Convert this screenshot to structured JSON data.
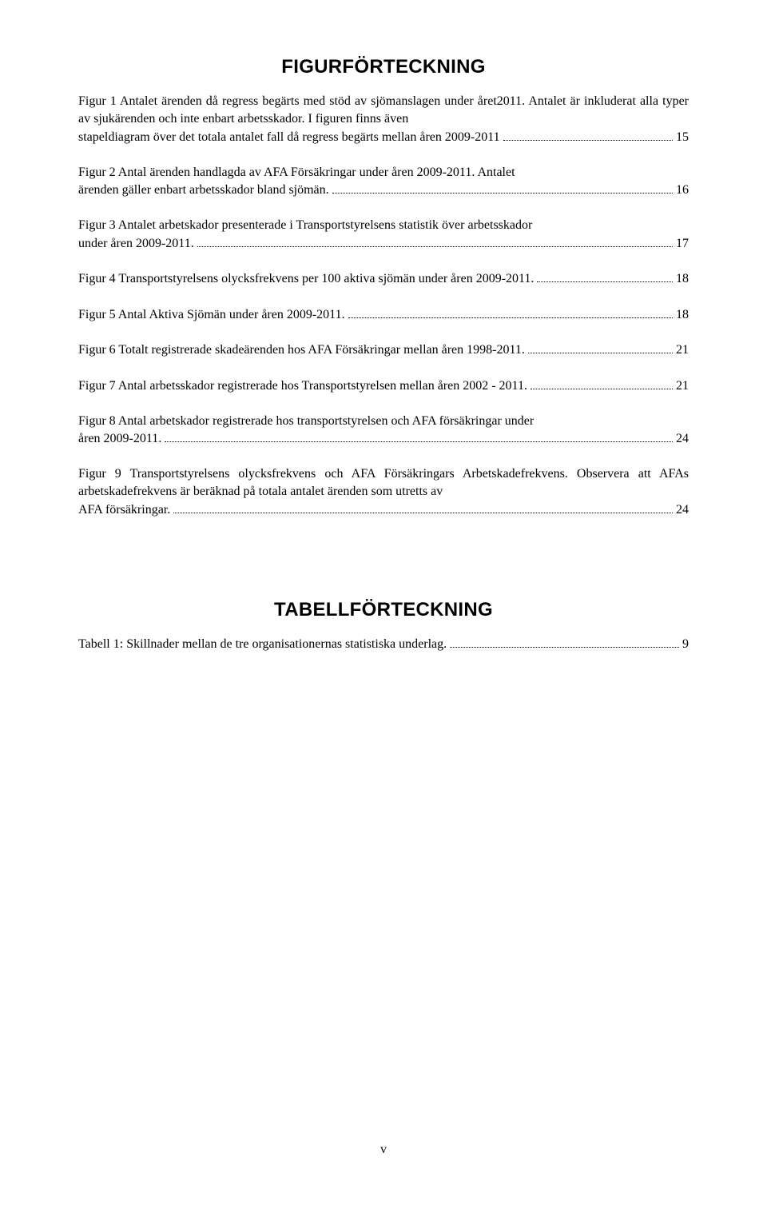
{
  "headings": {
    "figures": "FIGURFÖRTECKNING",
    "tables": "TABELLFÖRTECKNING"
  },
  "figures": [
    {
      "pre": "Figur 1 Antalet ärenden då regress begärts med stöd av sjömanslagen under året2011. Antalet är inkluderat alla typer av sjukärenden och inte enbart arbetsskador. I figuren finns även",
      "last": "stapeldiagram över det totala antalet fall då regress begärts mellan åren 2009-2011",
      "page": "15"
    },
    {
      "pre": "Figur 2 Antal ärenden handlagda av AFA Försäkringar under åren 2009-2011. Antalet",
      "last": "ärenden gäller enbart arbetsskador bland sjömän. ",
      "page": "16"
    },
    {
      "pre": "Figur 3 Antalet arbetskador presenterade i Transportstyrelsens statistik över arbetsskador",
      "last": "under åren 2009-2011.",
      "page": "17"
    },
    {
      "pre": "",
      "last": "Figur 4 Transportstyrelsens olycksfrekvens per 100 aktiva sjömän under åren 2009-2011.",
      "page": "18"
    },
    {
      "pre": "",
      "last": "Figur 5 Antal Aktiva Sjömän under åren 2009-2011.",
      "page": "18"
    },
    {
      "pre": "",
      "last": "Figur 6 Totalt registrerade skadeärenden hos AFA Försäkringar mellan åren 1998-2011.",
      "page": "21"
    },
    {
      "pre": "",
      "last": "Figur 7 Antal arbetsskador registrerade hos Transportstyrelsen mellan åren 2002 - 2011.",
      "page": "21"
    },
    {
      "pre": "Figur 8 Antal arbetskador registrerade hos transportstyrelsen och AFA försäkringar under",
      "last": "åren 2009-2011.",
      "page": "24"
    },
    {
      "pre": "Figur 9 Transportstyrelsens olycksfrekvens och AFA Försäkringars Arbetskadefrekvens. Observera att AFAs arbetskadefrekvens är beräknad på totala antalet ärenden som utretts av",
      "last": "AFA försäkringar. ",
      "page": "24"
    }
  ],
  "tables": [
    {
      "pre": "",
      "last": "Tabell 1: Skillnader mellan de tre organisationernas statistiska underlag. ",
      "page": "9"
    }
  ],
  "pageNumber": "v"
}
